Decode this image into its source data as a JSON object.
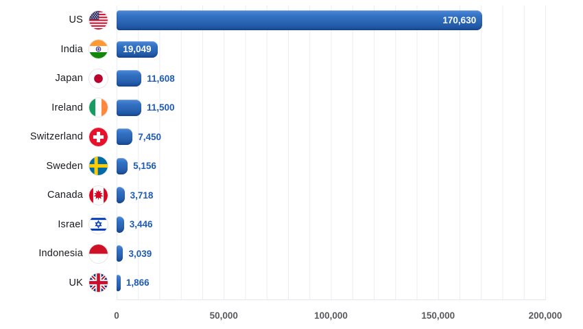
{
  "chart_data": {
    "type": "bar",
    "orientation": "horizontal",
    "title": "",
    "xlabel": "",
    "ylabel": "",
    "xmax": 200000,
    "grid": "vertical",
    "legend": "none",
    "colors": {
      "bar": "#2a66b4",
      "value_label_outside": "#1d5bb4",
      "value_label_inside": "#ffffff",
      "grid_line": "#e9edf4",
      "tick_text": "#58595c"
    },
    "x_ticks": [
      {
        "value": 0,
        "label": "0"
      },
      {
        "value": 50000,
        "label": "50,000"
      },
      {
        "value": 100000,
        "label": "100,000"
      },
      {
        "value": 150000,
        "label": "150,000"
      },
      {
        "value": 200000,
        "label": "200,000"
      }
    ],
    "categories": [
      "US",
      "India",
      "Japan",
      "Ireland",
      "Switzerland",
      "Sweden",
      "Canada",
      "Israel",
      "Indonesia",
      "UK"
    ],
    "values": [
      170630,
      19049,
      11608,
      11500,
      7450,
      5156,
      3718,
      3446,
      3039,
      1866
    ],
    "rows": [
      {
        "label": "US",
        "flag_icon": "us-flag-icon",
        "value": 170630,
        "value_label": "170,630",
        "value_label_position": "inside"
      },
      {
        "label": "India",
        "flag_icon": "india-flag-icon",
        "value": 19049,
        "value_label": "19,049",
        "value_label_position": "inside"
      },
      {
        "label": "Japan",
        "flag_icon": "japan-flag-icon",
        "value": 11608,
        "value_label": "11,608",
        "value_label_position": "outside"
      },
      {
        "label": "Ireland",
        "flag_icon": "ireland-flag-icon",
        "value": 11500,
        "value_label": "11,500",
        "value_label_position": "outside"
      },
      {
        "label": "Switzerland",
        "flag_icon": "switzerland-flag-icon",
        "value": 7450,
        "value_label": "7,450",
        "value_label_position": "outside"
      },
      {
        "label": "Sweden",
        "flag_icon": "sweden-flag-icon",
        "value": 5156,
        "value_label": "5,156",
        "value_label_position": "outside"
      },
      {
        "label": "Canada",
        "flag_icon": "canada-flag-icon",
        "value": 3718,
        "value_label": "3,718",
        "value_label_position": "outside"
      },
      {
        "label": "Israel",
        "flag_icon": "israel-flag-icon",
        "value": 3446,
        "value_label": "3,446",
        "value_label_position": "outside"
      },
      {
        "label": "Indonesia",
        "flag_icon": "indonesia-flag-icon",
        "value": 3039,
        "value_label": "3,039",
        "value_label_position": "outside"
      },
      {
        "label": "UK",
        "flag_icon": "uk-flag-icon",
        "value": 1866,
        "value_label": "1,866",
        "value_label_position": "outside"
      }
    ]
  }
}
